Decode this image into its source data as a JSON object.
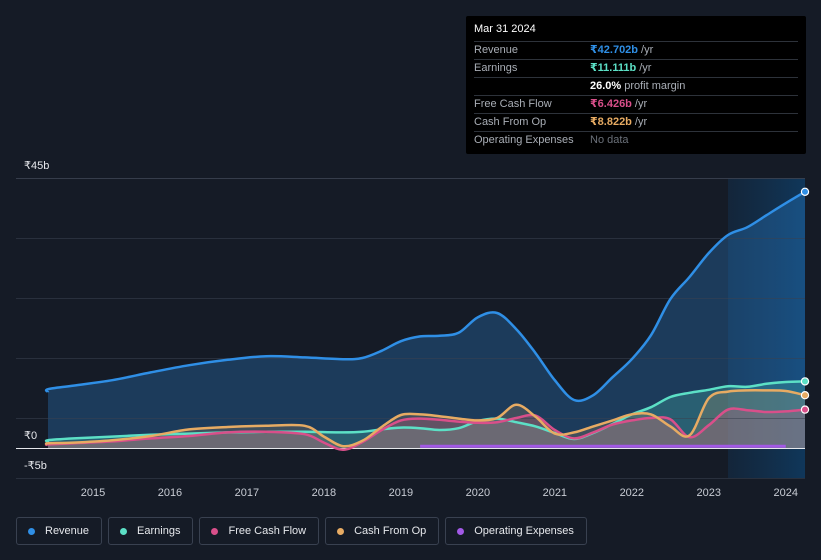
{
  "chart_data": {
    "type": "area",
    "title": "",
    "xlabel": "",
    "ylabel": "",
    "ylim": [
      -5,
      45
    ],
    "y_tick_labels": [
      "₹45b",
      "₹0",
      "-₹5b"
    ],
    "x_tick_labels": [
      "2015",
      "2016",
      "2017",
      "2018",
      "2019",
      "2020",
      "2021",
      "2022",
      "2023",
      "2024"
    ],
    "x_tick_values": [
      2015,
      2016,
      2017,
      2018,
      2019,
      2020,
      2021,
      2022,
      2023,
      2024
    ],
    "x_range": [
      2014.0,
      2024.25
    ],
    "highlight_start": 2023.25,
    "series": [
      {
        "name": "Revenue",
        "color": "#2f8fe6",
        "x": [
          2013.75,
          2014.25,
          2014.75,
          2015.25,
          2015.75,
          2016.25,
          2016.75,
          2017.25,
          2017.75,
          2018.25,
          2018.5,
          2018.75,
          2019.0,
          2019.25,
          2019.5,
          2019.75,
          2020.0,
          2020.25,
          2020.5,
          2020.75,
          2021.0,
          2021.25,
          2021.5,
          2021.75,
          2022.0,
          2022.25,
          2022.5,
          2022.75,
          2023.0,
          2023.25,
          2023.5,
          2023.75,
          2024.0,
          2024.25
        ],
        "values": [
          9.3,
          9.8,
          10.4,
          11.3,
          12.6,
          13.8,
          14.7,
          15.3,
          15.1,
          14.8,
          15.0,
          16.2,
          17.8,
          18.6,
          18.7,
          19.2,
          21.8,
          22.5,
          19.8,
          15.8,
          11.3,
          8.0,
          8.8,
          11.8,
          14.8,
          18.8,
          24.8,
          28.5,
          32.5,
          35.5,
          36.8,
          38.8,
          40.8,
          42.7
        ]
      },
      {
        "name": "Earnings",
        "color": "#5ce0c6",
        "x": [
          2013.75,
          2014.25,
          2014.75,
          2015.25,
          2015.75,
          2016.25,
          2016.75,
          2017.25,
          2017.75,
          2018.25,
          2018.5,
          2018.75,
          2019.0,
          2019.25,
          2019.5,
          2019.75,
          2020.0,
          2020.25,
          2020.5,
          2020.75,
          2021.0,
          2021.25,
          2021.5,
          2021.75,
          2022.0,
          2022.25,
          2022.5,
          2022.75,
          2023.0,
          2023.25,
          2023.5,
          2023.75,
          2024.0,
          2024.25
        ],
        "values": [
          1.0,
          1.3,
          1.6,
          1.9,
          2.2,
          2.4,
          2.6,
          2.7,
          2.7,
          2.6,
          2.7,
          3.1,
          3.4,
          3.3,
          3.0,
          3.3,
          4.5,
          4.9,
          4.3,
          3.6,
          2.5,
          1.5,
          2.5,
          4.0,
          5.6,
          6.8,
          8.5,
          9.2,
          9.7,
          10.3,
          10.2,
          10.7,
          11.0,
          11.1
        ]
      },
      {
        "name": "Free Cash Flow",
        "color": "#d94f8a",
        "x": [
          2013.75,
          2014.25,
          2014.75,
          2015.25,
          2015.75,
          2016.25,
          2016.75,
          2017.25,
          2017.75,
          2018.0,
          2018.25,
          2018.5,
          2018.75,
          2019.0,
          2019.25,
          2019.5,
          2019.75,
          2020.0,
          2020.25,
          2020.5,
          2020.75,
          2021.0,
          2021.25,
          2021.5,
          2021.75,
          2022.0,
          2022.25,
          2022.5,
          2022.75,
          2023.0,
          2023.25,
          2023.5,
          2023.75,
          2024.0,
          2024.25
        ],
        "values": [
          0.5,
          0.6,
          0.8,
          1.1,
          1.6,
          2.0,
          2.6,
          2.7,
          2.3,
          0.9,
          -0.3,
          1.0,
          3.0,
          4.6,
          4.9,
          4.7,
          4.4,
          4.2,
          4.3,
          5.0,
          5.4,
          3.0,
          1.6,
          2.6,
          3.9,
          4.6,
          5.0,
          4.8,
          1.8,
          3.8,
          6.4,
          6.3,
          6.0,
          6.1,
          6.4
        ]
      },
      {
        "name": "Cash From Op",
        "color": "#e7ab63",
        "x": [
          2013.75,
          2014.25,
          2014.75,
          2015.25,
          2015.75,
          2016.25,
          2016.75,
          2017.25,
          2017.75,
          2018.0,
          2018.25,
          2018.5,
          2018.75,
          2019.0,
          2019.25,
          2019.5,
          2019.75,
          2020.0,
          2020.25,
          2020.5,
          2020.75,
          2021.0,
          2021.25,
          2021.5,
          2021.75,
          2022.0,
          2022.25,
          2022.5,
          2022.75,
          2023.0,
          2023.25,
          2023.5,
          2023.75,
          2024.0,
          2024.25
        ],
        "values": [
          0.6,
          0.8,
          0.9,
          1.3,
          2.0,
          3.1,
          3.5,
          3.7,
          3.7,
          1.9,
          0.3,
          1.2,
          3.5,
          5.5,
          5.6,
          5.3,
          4.9,
          4.6,
          5.0,
          7.2,
          5.2,
          2.4,
          2.6,
          3.6,
          4.6,
          5.6,
          5.6,
          3.6,
          2.1,
          8.3,
          9.4,
          9.6,
          9.6,
          9.5,
          8.8
        ]
      },
      {
        "name": "Operating Expenses",
        "color": "#a259e6",
        "x": [
          2019.25,
          2024.0
        ],
        "values": [
          0.3,
          0.3
        ]
      }
    ]
  },
  "tooltip": {
    "date": "Mar 31 2024",
    "rows": [
      {
        "label": "Revenue",
        "value": "₹42.702b",
        "unit": "/yr",
        "color": "#2f8fe6"
      },
      {
        "label": "Earnings",
        "value": "₹11.111b",
        "unit": "/yr",
        "color": "#5ce0c6"
      },
      {
        "label": "",
        "value": "26.0%",
        "unit": "profit margin",
        "color": "#ffffff"
      },
      {
        "label": "Free Cash Flow",
        "value": "₹6.426b",
        "unit": "/yr",
        "color": "#d94f8a"
      },
      {
        "label": "Cash From Op",
        "value": "₹8.822b",
        "unit": "/yr",
        "color": "#e7ab63"
      },
      {
        "label": "Operating Expenses",
        "value": "No data",
        "unit": "",
        "color": "#6b717a"
      }
    ]
  },
  "legend": [
    {
      "label": "Revenue",
      "color": "#2f8fe6"
    },
    {
      "label": "Earnings",
      "color": "#5ce0c6"
    },
    {
      "label": "Free Cash Flow",
      "color": "#d94f8a"
    },
    {
      "label": "Cash From Op",
      "color": "#e7ab63"
    },
    {
      "label": "Operating Expenses",
      "color": "#a259e6"
    }
  ]
}
